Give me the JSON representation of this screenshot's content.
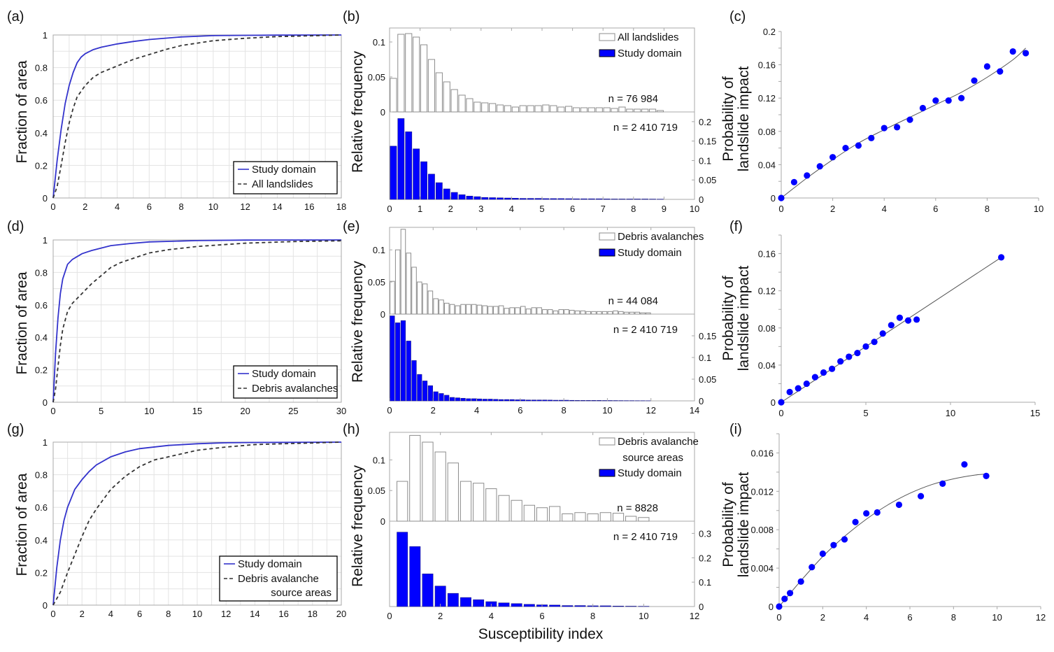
{
  "figure": {
    "shared_xlabel": "Susceptibility index",
    "colors": {
      "study_domain": "#0000ff",
      "cdf_study": "#3333cc",
      "cdf_other": "#333333",
      "hist_outline": "#8c8c8c",
      "hist_fill_blue": "#0000ff",
      "grid": "#e3e3e3",
      "axis": "#a8a8a8",
      "fit_line": "#555555"
    }
  },
  "chart_data": [
    {
      "panel": "(a)",
      "type": "line",
      "title": "",
      "xlabel": "",
      "ylabel": "Fraction of area",
      "xlim": [
        0,
        18
      ],
      "ylim": [
        0,
        1
      ],
      "xticks": [
        "0",
        "2",
        "4",
        "6",
        "8",
        "10",
        "12",
        "14",
        "16",
        "18"
      ],
      "yticks": [
        "0",
        "0.2",
        "0.4",
        "0.6",
        "0.8",
        "1"
      ],
      "grid": true,
      "legend_position": "bottom-right",
      "series": [
        {
          "name": "Study domain",
          "style": "solid",
          "x": [
            0,
            0.25,
            0.5,
            0.75,
            1,
            1.25,
            1.5,
            1.75,
            2,
            2.5,
            3,
            4,
            5,
            6,
            8,
            10,
            12,
            14,
            18
          ],
          "y": [
            0,
            0.23,
            0.42,
            0.58,
            0.69,
            0.77,
            0.83,
            0.865,
            0.885,
            0.91,
            0.925,
            0.945,
            0.96,
            0.972,
            0.988,
            0.996,
            0.998,
            0.999,
            1.0
          ]
        },
        {
          "name": "All landslides",
          "style": "dashed",
          "x": [
            0,
            0.25,
            0.5,
            0.75,
            1,
            1.25,
            1.5,
            2,
            2.5,
            3,
            4,
            5,
            6,
            7,
            8,
            10,
            12,
            14,
            16,
            18
          ],
          "y": [
            0,
            0.07,
            0.2,
            0.34,
            0.46,
            0.55,
            0.62,
            0.69,
            0.74,
            0.77,
            0.81,
            0.85,
            0.88,
            0.91,
            0.935,
            0.965,
            0.98,
            0.99,
            0.995,
            1.0
          ]
        }
      ]
    },
    {
      "panel": "(b)",
      "type": "bar",
      "title": "",
      "ylabel": "Relative frequency",
      "xlim": [
        0,
        10
      ],
      "xticks": [
        "0",
        "1",
        "2",
        "3",
        "4",
        "5",
        "6",
        "7",
        "8",
        "9",
        "10"
      ],
      "bin_width": 0.25,
      "bin_start": 0.125,
      "top": {
        "name": "All landslides",
        "ylim": [
          0,
          0.12
        ],
        "yticks": [
          "0",
          "0.05",
          "0.1"
        ],
        "n_label": "n = 76 984",
        "values": [
          0.048,
          0.111,
          0.112,
          0.107,
          0.096,
          0.075,
          0.056,
          0.043,
          0.032,
          0.024,
          0.019,
          0.014,
          0.013,
          0.012,
          0.01,
          0.009,
          0.007,
          0.009,
          0.009,
          0.009,
          0.01,
          0.009,
          0.007,
          0.008,
          0.006,
          0.006,
          0.006,
          0.006,
          0.006,
          0.005,
          0.007,
          0.004,
          0.004,
          0.004,
          0.004,
          0.002
        ]
      },
      "bottom": {
        "name": "Study domain",
        "ylim": [
          0,
          0.225
        ],
        "yticks": [
          "0",
          "0.05",
          "0.1",
          "0.15",
          "0.2"
        ],
        "n_label": "n = 2 410 719",
        "values": [
          0.137,
          0.208,
          0.174,
          0.13,
          0.097,
          0.065,
          0.043,
          0.027,
          0.018,
          0.012,
          0.0085,
          0.007,
          0.005,
          0.0045,
          0.004,
          0.0035,
          0.003,
          0.0025,
          0.0025,
          0.0025,
          0.002,
          0.002,
          0.002,
          0.0018,
          0.0015,
          0.0015,
          0.0015,
          0.0015,
          0.0012,
          0.001,
          0.001,
          0.001,
          0.001,
          0.001,
          0.0008,
          0.0006
        ]
      }
    },
    {
      "panel": "(c)",
      "type": "scatter",
      "title": "",
      "ylabel": "Probability of landslide impact",
      "xlim": [
        0,
        10
      ],
      "ylim": [
        0,
        0.2
      ],
      "xticks": [
        "0",
        "2",
        "4",
        "6",
        "8",
        "10"
      ],
      "yticks": [
        "0",
        "0.04",
        "0.08",
        "0.12",
        "0.16",
        "0.2"
      ],
      "points": {
        "x": [
          0,
          0.5,
          1,
          1.5,
          2,
          2.5,
          3,
          3.5,
          4,
          4.5,
          5,
          5.5,
          6,
          6.5,
          7,
          7.5,
          8,
          8.5,
          9,
          9.5
        ],
        "y": [
          0,
          0.019,
          0.027,
          0.038,
          0.049,
          0.06,
          0.063,
          0.072,
          0.084,
          0.085,
          0.094,
          0.108,
          0.117,
          0.117,
          0.12,
          0.141,
          0.158,
          0.152,
          0.176,
          0.174
        ]
      },
      "fit": {
        "x": [
          0,
          1,
          2,
          3,
          4,
          5,
          6,
          7,
          8,
          9,
          9.5
        ],
        "y": [
          0,
          0.024,
          0.046,
          0.066,
          0.082,
          0.097,
          0.112,
          0.127,
          0.145,
          0.166,
          0.18
        ]
      }
    },
    {
      "panel": "(d)",
      "type": "line",
      "title": "",
      "ylabel": "Fraction of area",
      "xlim": [
        0,
        30
      ],
      "ylim": [
        0,
        1
      ],
      "xticks": [
        "0",
        "5",
        "10",
        "15",
        "20",
        "25",
        "30"
      ],
      "yticks": [
        "0",
        "0.2",
        "0.4",
        "0.6",
        "0.8",
        "1"
      ],
      "grid": true,
      "legend_position": "bottom-right",
      "series": [
        {
          "name": "Study domain",
          "style": "solid",
          "x": [
            0,
            0.25,
            0.5,
            0.75,
            1,
            1.5,
            2,
            3,
            4,
            5,
            6,
            8,
            10,
            15,
            20,
            30
          ],
          "y": [
            0,
            0.3,
            0.52,
            0.67,
            0.76,
            0.85,
            0.88,
            0.915,
            0.935,
            0.95,
            0.965,
            0.978,
            0.988,
            0.996,
            0.999,
            1.0
          ]
        },
        {
          "name": "Debris avalanches",
          "style": "dashed",
          "x": [
            0,
            0.25,
            0.5,
            0.75,
            1,
            1.5,
            2,
            3,
            4,
            5,
            6,
            7,
            8,
            10,
            12,
            15,
            20,
            25,
            30
          ],
          "y": [
            0,
            0.08,
            0.22,
            0.35,
            0.45,
            0.56,
            0.61,
            0.67,
            0.73,
            0.78,
            0.83,
            0.86,
            0.88,
            0.92,
            0.94,
            0.96,
            0.98,
            0.99,
            0.995
          ]
        }
      ]
    },
    {
      "panel": "(e)",
      "type": "bar",
      "title": "",
      "ylabel": "Relative frequency",
      "xlim": [
        0,
        14
      ],
      "xticks": [
        "0",
        "2",
        "4",
        "6",
        "8",
        "10",
        "12",
        "14"
      ],
      "bin_width": 0.25,
      "bin_start": 0.125,
      "top": {
        "name": "Debris avalanches",
        "ylim": [
          0,
          0.135
        ],
        "yticks": [
          "0",
          "0.05",
          "0.1"
        ],
        "n_label": "n = 44 084",
        "values": [
          0.051,
          0.1,
          0.132,
          0.095,
          0.073,
          0.05,
          0.047,
          0.036,
          0.024,
          0.022,
          0.017,
          0.015,
          0.013,
          0.015,
          0.015,
          0.015,
          0.014,
          0.013,
          0.012,
          0.012,
          0.013,
          0.009,
          0.01,
          0.01,
          0.012,
          0.008,
          0.01,
          0.01,
          0.007,
          0.007,
          0.005,
          0.007,
          0.007,
          0.006,
          0.005,
          0.005,
          0.004,
          0.004,
          0.004,
          0.004,
          0.004,
          0.005,
          0.004,
          0.003,
          0.003,
          0.003,
          0.002,
          0.002
        ]
      },
      "bottom": {
        "name": "Study domain",
        "ylim": [
          0,
          0.2
        ],
        "yticks": [
          "0",
          "0.05",
          "0.1",
          "0.15"
        ],
        "n_label": "n = 2 410 719",
        "values": [
          0.196,
          0.18,
          0.185,
          0.138,
          0.093,
          0.061,
          0.046,
          0.035,
          0.021,
          0.017,
          0.013,
          0.008,
          0.007,
          0.006,
          0.005,
          0.005,
          0.0045,
          0.004,
          0.004,
          0.0035,
          0.003,
          0.003,
          0.003,
          0.0025,
          0.0025,
          0.002,
          0.002,
          0.002,
          0.002,
          0.0018,
          0.0015,
          0.0015,
          0.0015,
          0.0012,
          0.001,
          0.001,
          0.001,
          0.001,
          0.001,
          0.0008,
          0.0008,
          0.0007,
          0.0006,
          0.0005,
          0.0005,
          0.0004,
          0.0004,
          0.0003
        ]
      }
    },
    {
      "panel": "(f)",
      "type": "scatter",
      "title": "",
      "ylabel": "Probability of landslide impact",
      "xlim": [
        0,
        15
      ],
      "ylim": [
        0,
        0.18
      ],
      "xticks": [
        "0",
        "5",
        "10",
        "15"
      ],
      "yticks": [
        "0",
        "0.04",
        "0.08",
        "0.12",
        "0.16"
      ],
      "points": {
        "x": [
          0,
          0.5,
          1,
          1.5,
          2,
          2.5,
          3,
          3.5,
          4,
          4.5,
          5,
          5.5,
          6,
          6.5,
          7,
          7.5,
          8,
          13
        ],
        "y": [
          0,
          0.011,
          0.015,
          0.02,
          0.027,
          0.032,
          0.036,
          0.044,
          0.049,
          0.053,
          0.06,
          0.065,
          0.074,
          0.083,
          0.091,
          0.088,
          0.089,
          0.156
        ]
      },
      "fit": {
        "x": [
          0,
          13
        ],
        "y": [
          0,
          0.156
        ]
      }
    },
    {
      "panel": "(g)",
      "type": "line",
      "title": "",
      "ylabel": "Fraction of area",
      "xlim": [
        0,
        20
      ],
      "ylim": [
        0,
        1
      ],
      "xticks": [
        "0",
        "2",
        "4",
        "6",
        "8",
        "10",
        "12",
        "14",
        "16",
        "18",
        "20"
      ],
      "yticks": [
        "0",
        "0.2",
        "0.4",
        "0.6",
        "0.8",
        "1"
      ],
      "grid": true,
      "legend_position": "bottom-right",
      "series": [
        {
          "name": "Study domain",
          "style": "solid",
          "x": [
            0,
            0.25,
            0.5,
            0.75,
            1,
            1.5,
            2,
            2.5,
            3,
            4,
            5,
            6,
            8,
            10,
            12,
            14,
            20
          ],
          "y": [
            0,
            0.23,
            0.4,
            0.52,
            0.6,
            0.71,
            0.77,
            0.82,
            0.86,
            0.91,
            0.94,
            0.96,
            0.98,
            0.99,
            0.996,
            0.998,
            1.0
          ]
        },
        {
          "name": "Debris avalanche source areas",
          "style": "dashed",
          "x": [
            0,
            0.5,
            1,
            1.5,
            2,
            2.5,
            3,
            3.5,
            4,
            5,
            6,
            7,
            8,
            10,
            12,
            14,
            16,
            18,
            20
          ],
          "y": [
            0,
            0.08,
            0.2,
            0.31,
            0.42,
            0.52,
            0.59,
            0.65,
            0.71,
            0.79,
            0.85,
            0.89,
            0.91,
            0.95,
            0.97,
            0.985,
            0.99,
            0.995,
            1.0
          ]
        }
      ]
    },
    {
      "panel": "(h)",
      "type": "bar",
      "title": "",
      "ylabel": "Relative frequency",
      "xlabel": "Susceptibility index",
      "xlim": [
        0,
        12
      ],
      "xticks": [
        "0",
        "2",
        "4",
        "6",
        "8",
        "10",
        "12"
      ],
      "bin_width": 0.5,
      "bin_start": 0.5,
      "top": {
        "name": "Debris avalanche source areas",
        "ylim": [
          0,
          0.145
        ],
        "yticks": [
          "0",
          "0.05",
          "0.1"
        ],
        "n_label": "n = 8828",
        "values": [
          0.065,
          0.14,
          0.129,
          0.113,
          0.095,
          0.065,
          0.062,
          0.053,
          0.042,
          0.034,
          0.026,
          0.022,
          0.024,
          0.012,
          0.014,
          0.012,
          0.014,
          0.013,
          0.008,
          0.006
        ]
      },
      "bottom": {
        "name": "Study domain",
        "ylim": [
          0,
          0.35
        ],
        "yticks": [
          "0",
          "0.1",
          "0.2",
          "0.3"
        ],
        "n_label": "n = 2 410 719",
        "values": [
          0.305,
          0.246,
          0.134,
          0.084,
          0.054,
          0.037,
          0.028,
          0.02,
          0.015,
          0.012,
          0.009,
          0.007,
          0.006,
          0.004,
          0.004,
          0.003,
          0.003,
          0.002,
          0.0015,
          0.001
        ]
      }
    },
    {
      "panel": "(i)",
      "type": "scatter",
      "title": "",
      "ylabel": "Probability of landslide impact",
      "xlim": [
        0,
        12
      ],
      "ylim": [
        0,
        0.018
      ],
      "xticks": [
        "0",
        "2",
        "4",
        "6",
        "8",
        "10",
        "12"
      ],
      "yticks": [
        "0",
        "0.004",
        "0.008",
        "0.012",
        "0.016"
      ],
      "points": {
        "x": [
          0,
          0.25,
          0.5,
          1,
          1.5,
          2,
          2.5,
          3,
          3.5,
          4,
          4.5,
          5.5,
          6.5,
          7.5,
          8.5,
          9.5
        ],
        "y": [
          0,
          0.0008,
          0.0014,
          0.0026,
          0.0041,
          0.0055,
          0.0064,
          0.007,
          0.0088,
          0.0097,
          0.0098,
          0.0106,
          0.0115,
          0.0128,
          0.0148,
          0.0136
        ]
      },
      "fit": {
        "x": [
          0,
          1,
          2,
          3,
          4,
          5,
          6,
          7,
          8,
          9,
          9.5
        ],
        "y": [
          0,
          0.0027,
          0.0052,
          0.0073,
          0.0091,
          0.0106,
          0.0118,
          0.0127,
          0.0133,
          0.0137,
          0.0138
        ]
      }
    }
  ]
}
